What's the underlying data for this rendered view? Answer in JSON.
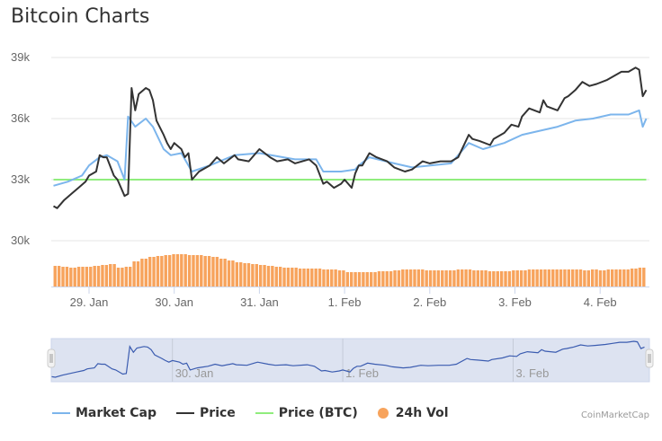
{
  "title": "Bitcoin Charts",
  "credit": "CoinMarketCap",
  "colors": {
    "market_cap": "#7cb5ec",
    "price": "#333333",
    "price_btc": "#90ed7d",
    "volume": "#f7a35c",
    "navigator_fill": "#dde3f1",
    "navigator_line": "#3b5cb0"
  },
  "legend": [
    {
      "label": "Market Cap",
      "key": "market_cap",
      "marker": "line"
    },
    {
      "label": "Price",
      "key": "price",
      "marker": "line"
    },
    {
      "label": "Price (BTC)",
      "key": "price_btc",
      "marker": "line"
    },
    {
      "label": "24h Vol",
      "key": "volume",
      "marker": "circle"
    }
  ],
  "chart_data": {
    "type": "line",
    "title": "Bitcoin Charts",
    "grid": true,
    "legend_position": "bottom",
    "y_ticks": [
      "39k",
      "36k",
      "33k",
      "30k"
    ],
    "y_tick_values": [
      39000,
      36000,
      33000,
      30000
    ],
    "ylim": [
      27750,
      39000
    ],
    "x_ticks": [
      "29. Jan",
      "30. Jan",
      "31. Jan",
      "1. Feb",
      "2. Feb",
      "3. Feb",
      "4. Feb"
    ],
    "x_tick_dates": [
      "01-29 00:00",
      "01-30 00:00",
      "01-31 00:00",
      "02-01 00:00",
      "02-02 00:00",
      "02-03 00:00",
      "02-04 00:00"
    ],
    "xlim": [
      "01-28 14:00",
      "02-04 13:00"
    ],
    "navigator_ticks": [
      "30. Jan",
      "1. Feb",
      "3. Feb"
    ],
    "navigator_tick_dates": [
      "01-30 00:00",
      "02-01 00:00",
      "02-03 00:00"
    ],
    "series": [
      {
        "name": "Price",
        "key": "price",
        "points": [
          [
            "01-28 14:00",
            31700
          ],
          [
            "01-28 15:00",
            31600
          ],
          [
            "01-28 17:00",
            32000
          ],
          [
            "01-28 19:00",
            32300
          ],
          [
            "01-28 21:00",
            32600
          ],
          [
            "01-28 23:00",
            32900
          ],
          [
            "01-29 00:00",
            33200
          ],
          [
            "01-29 02:00",
            33400
          ],
          [
            "01-29 03:00",
            34200
          ],
          [
            "01-29 04:00",
            34100
          ],
          [
            "01-29 05:00",
            34100
          ],
          [
            "01-29 07:00",
            33200
          ],
          [
            "01-29 08:00",
            33000
          ],
          [
            "01-29 10:00",
            32200
          ],
          [
            "01-29 11:00",
            32300
          ],
          [
            "01-29 12:00",
            37500
          ],
          [
            "01-29 13:00",
            36400
          ],
          [
            "01-29 14:00",
            37200
          ],
          [
            "01-29 16:00",
            37500
          ],
          [
            "01-29 17:00",
            37400
          ],
          [
            "01-29 18:00",
            36900
          ],
          [
            "01-29 19:00",
            35900
          ],
          [
            "01-29 21:00",
            35200
          ],
          [
            "01-29 22:00",
            34800
          ],
          [
            "01-29 23:00",
            34500
          ],
          [
            "01-30 00:00",
            34800
          ],
          [
            "01-30 02:00",
            34500
          ],
          [
            "01-30 03:00",
            34100
          ],
          [
            "01-30 04:00",
            34300
          ],
          [
            "01-30 05:00",
            33000
          ],
          [
            "01-30 07:00",
            33400
          ],
          [
            "01-30 08:00",
            33500
          ],
          [
            "01-30 10:00",
            33700
          ],
          [
            "01-30 12:00",
            34100
          ],
          [
            "01-30 14:00",
            33800
          ],
          [
            "01-30 17:00",
            34200
          ],
          [
            "01-30 18:00",
            34000
          ],
          [
            "01-30 21:00",
            33900
          ],
          [
            "01-30 23:00",
            34300
          ],
          [
            "01-31 00:00",
            34500
          ],
          [
            "01-31 03:00",
            34100
          ],
          [
            "01-31 05:00",
            33900
          ],
          [
            "01-31 08:00",
            34000
          ],
          [
            "01-31 10:00",
            33800
          ],
          [
            "01-31 14:00",
            34000
          ],
          [
            "01-31 16:00",
            33700
          ],
          [
            "01-31 18:00",
            32800
          ],
          [
            "01-31 19:00",
            32900
          ],
          [
            "01-31 21:00",
            32600
          ],
          [
            "01-31 23:00",
            32800
          ],
          [
            "02-01 00:00",
            33000
          ],
          [
            "02-01 02:00",
            32600
          ],
          [
            "02-01 03:00",
            33300
          ],
          [
            "02-01 04:00",
            33700
          ],
          [
            "02-01 05:00",
            33700
          ],
          [
            "02-01 07:00",
            34300
          ],
          [
            "02-01 09:00",
            34100
          ],
          [
            "02-01 12:00",
            33900
          ],
          [
            "02-01 14:00",
            33600
          ],
          [
            "02-01 17:00",
            33400
          ],
          [
            "02-01 19:00",
            33500
          ],
          [
            "02-01 22:00",
            33900
          ],
          [
            "02-02 00:00",
            33800
          ],
          [
            "02-02 03:00",
            33900
          ],
          [
            "02-02 06:00",
            33900
          ],
          [
            "02-02 08:00",
            34100
          ],
          [
            "02-02 11:00",
            35200
          ],
          [
            "02-02 12:00",
            35000
          ],
          [
            "02-02 14:00",
            34900
          ],
          [
            "02-02 17:00",
            34700
          ],
          [
            "02-02 18:00",
            35000
          ],
          [
            "02-02 21:00",
            35300
          ],
          [
            "02-02 23:00",
            35700
          ],
          [
            "02-03 01:00",
            35600
          ],
          [
            "02-03 02:00",
            36100
          ],
          [
            "02-03 04:00",
            36500
          ],
          [
            "02-03 07:00",
            36300
          ],
          [
            "02-03 08:00",
            36900
          ],
          [
            "02-03 09:00",
            36600
          ],
          [
            "02-03 12:00",
            36400
          ],
          [
            "02-03 14:00",
            37000
          ],
          [
            "02-03 15:00",
            37100
          ],
          [
            "02-03 17:00",
            37400
          ],
          [
            "02-03 19:00",
            37800
          ],
          [
            "02-03 21:00",
            37600
          ],
          [
            "02-03 23:00",
            37700
          ],
          [
            "02-04 02:00",
            37900
          ],
          [
            "02-04 04:00",
            38100
          ],
          [
            "02-04 06:00",
            38300
          ],
          [
            "02-04 08:00",
            38300
          ],
          [
            "02-04 10:00",
            38500
          ],
          [
            "02-04 11:00",
            38400
          ],
          [
            "02-04 12:00",
            37100
          ],
          [
            "02-04 13:00",
            37400
          ]
        ]
      },
      {
        "name": "Market Cap",
        "key": "market_cap",
        "points": [
          [
            "01-28 14:00",
            32700
          ],
          [
            "01-28 18:00",
            32900
          ],
          [
            "01-28 22:00",
            33200
          ],
          [
            "01-29 00:00",
            33700
          ],
          [
            "01-29 03:00",
            34100
          ],
          [
            "01-29 05:00",
            34200
          ],
          [
            "01-29 08:00",
            33900
          ],
          [
            "01-29 10:00",
            33000
          ],
          [
            "01-29 11:00",
            36100
          ],
          [
            "01-29 13:00",
            35600
          ],
          [
            "01-29 16:00",
            36000
          ],
          [
            "01-29 18:00",
            35600
          ],
          [
            "01-29 21:00",
            34500
          ],
          [
            "01-29 23:00",
            34200
          ],
          [
            "01-30 02:00",
            34300
          ],
          [
            "01-30 05:00",
            33400
          ],
          [
            "01-30 10:00",
            33700
          ],
          [
            "01-30 17:00",
            34200
          ],
          [
            "01-31 00:00",
            34300
          ],
          [
            "01-31 10:00",
            34000
          ],
          [
            "01-31 16:00",
            34000
          ],
          [
            "01-31 18:00",
            33400
          ],
          [
            "01-31 23:00",
            33400
          ],
          [
            "02-01 03:00",
            33500
          ],
          [
            "02-01 04:00",
            33700
          ],
          [
            "02-01 07:00",
            34100
          ],
          [
            "02-01 14:00",
            33800
          ],
          [
            "02-01 19:00",
            33600
          ],
          [
            "02-02 06:00",
            33800
          ],
          [
            "02-02 11:00",
            34800
          ],
          [
            "02-02 15:00",
            34500
          ],
          [
            "02-02 21:00",
            34800
          ],
          [
            "02-03 02:00",
            35200
          ],
          [
            "02-03 07:00",
            35400
          ],
          [
            "02-03 12:00",
            35600
          ],
          [
            "02-03 17:00",
            35900
          ],
          [
            "02-03 22:00",
            36000
          ],
          [
            "02-04 03:00",
            36200
          ],
          [
            "02-04 08:00",
            36200
          ],
          [
            "02-04 11:00",
            36400
          ],
          [
            "02-04 12:00",
            35600
          ],
          [
            "02-04 13:00",
            36000
          ]
        ]
      },
      {
        "name": "Price (BTC)",
        "key": "price_btc",
        "points": [
          [
            "01-28 14:00",
            33000
          ],
          [
            "02-04 13:00",
            33000
          ]
        ]
      }
    ],
    "volume": {
      "name": "24h Vol",
      "values": [
        23,
        22,
        21,
        22,
        22,
        23,
        24,
        25,
        21,
        22,
        28,
        31,
        33,
        34,
        35,
        36,
        36,
        35,
        35,
        34,
        33,
        31,
        29,
        27,
        26,
        25,
        24,
        23,
        22,
        21,
        21,
        20,
        20,
        20,
        19,
        19,
        18,
        16,
        16,
        16,
        16,
        17,
        17,
        18,
        19,
        19,
        19,
        18,
        18,
        18,
        18,
        19,
        19,
        18,
        18,
        17,
        17,
        17,
        18,
        18,
        19,
        19,
        19,
        19,
        19,
        19,
        19,
        18,
        19,
        18,
        19,
        19,
        19,
        20,
        21
      ]
    }
  }
}
